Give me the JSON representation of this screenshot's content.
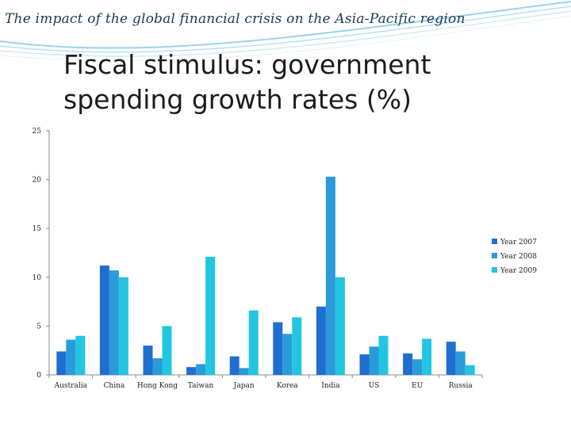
{
  "header": {
    "title": "The impact of the global financial crisis on the Asia-Pacific region"
  },
  "slide": {
    "title": "Fiscal stimulus: government spending growth rates (%)"
  },
  "colors": {
    "series": [
      "#1f6fd0",
      "#2a9bd8",
      "#22c6e0"
    ],
    "header_swoosh": "#9ad3e8"
  },
  "chart_data": {
    "type": "bar",
    "title": "",
    "xlabel": "",
    "ylabel": "",
    "ylim": [
      0,
      25
    ],
    "yticks": [
      0,
      5,
      10,
      15,
      20,
      25
    ],
    "legend_position": "right",
    "categories": [
      "Australia",
      "China",
      "Hong Kong",
      "Taiwan",
      "Japan",
      "Korea",
      "India",
      "US",
      "EU",
      "Russia"
    ],
    "series": [
      {
        "name": "Year 2007",
        "values": [
          2.4,
          11.2,
          3.0,
          0.8,
          1.9,
          5.4,
          7.0,
          2.1,
          2.2,
          3.4
        ]
      },
      {
        "name": "Year 2008",
        "values": [
          3.6,
          10.7,
          1.7,
          1.1,
          0.7,
          4.2,
          20.3,
          2.9,
          1.6,
          2.4
        ]
      },
      {
        "name": "Year 2009",
        "values": [
          4.0,
          10.0,
          5.0,
          12.1,
          6.6,
          5.9,
          10.0,
          4.0,
          3.7,
          1.0
        ]
      }
    ]
  }
}
